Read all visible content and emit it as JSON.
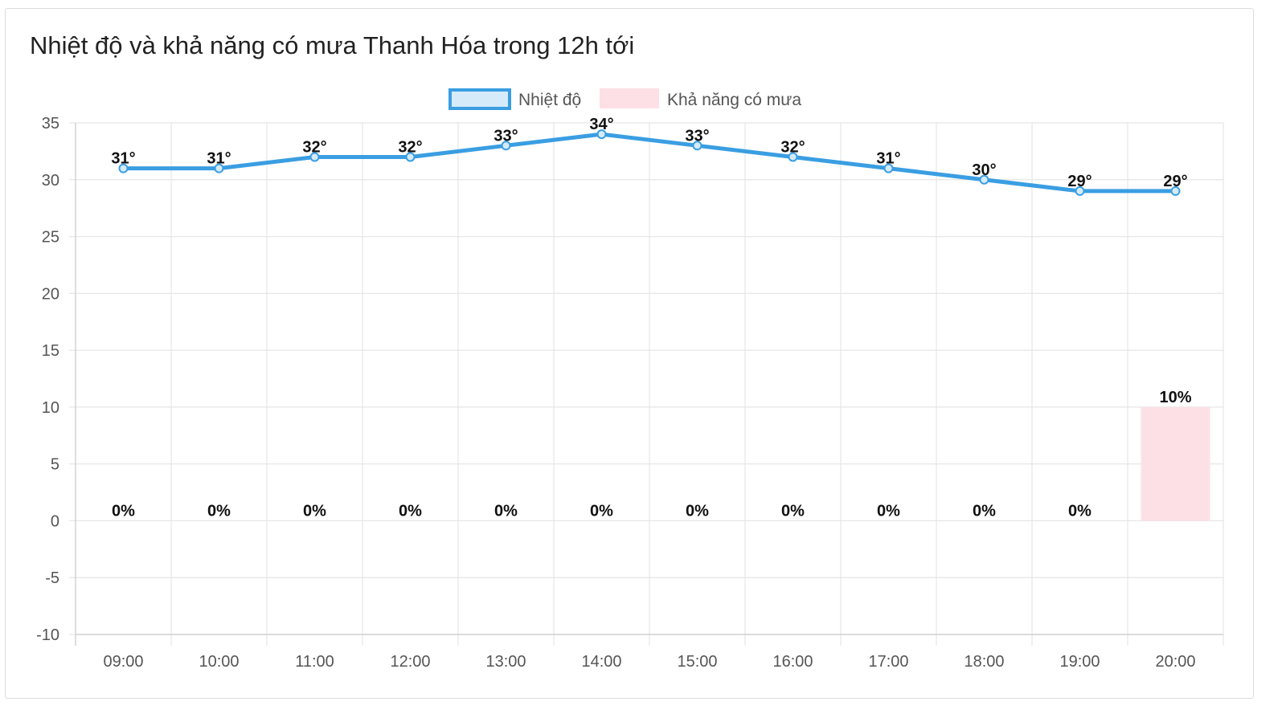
{
  "title": "Nhiệt độ và khả năng có mưa Thanh Hóa trong 12h tới",
  "legend": {
    "temperature": "Nhiệt độ",
    "rain": "Khả năng có mưa"
  },
  "colors": {
    "line": "#3a9ee2",
    "line_fill": "#d6ebf9",
    "bar": "#fde0e6",
    "grid": "#e5e5e5",
    "axis_text": "#555555",
    "label_text": "#111111"
  },
  "chart_data": {
    "type": "line",
    "title": "Nhiệt độ và khả năng có mưa Thanh Hóa trong 12h tới",
    "categories": [
      "09:00",
      "10:00",
      "11:00",
      "12:00",
      "13:00",
      "14:00",
      "15:00",
      "16:00",
      "17:00",
      "18:00",
      "19:00",
      "20:00"
    ],
    "series": [
      {
        "name": "Nhiệt độ",
        "type": "line",
        "values": [
          31,
          31,
          32,
          32,
          33,
          34,
          33,
          32,
          31,
          30,
          29,
          29
        ],
        "labels": [
          "31°",
          "31°",
          "32°",
          "32°",
          "33°",
          "34°",
          "33°",
          "32°",
          "31°",
          "30°",
          "29°",
          "29°"
        ]
      },
      {
        "name": "Khả năng có mưa",
        "type": "bar",
        "values": [
          0,
          0,
          0,
          0,
          0,
          0,
          0,
          0,
          0,
          0,
          0,
          10
        ],
        "labels": [
          "0%",
          "0%",
          "0%",
          "0%",
          "0%",
          "0%",
          "0%",
          "0%",
          "0%",
          "0%",
          "0%",
          "10%"
        ]
      }
    ],
    "yticks": [
      "35",
      "30",
      "25",
      "20",
      "15",
      "10",
      "5",
      "0",
      "-5",
      "-10"
    ],
    "ylim": [
      -10,
      35
    ],
    "grid": true,
    "legend_position": "top-center"
  }
}
